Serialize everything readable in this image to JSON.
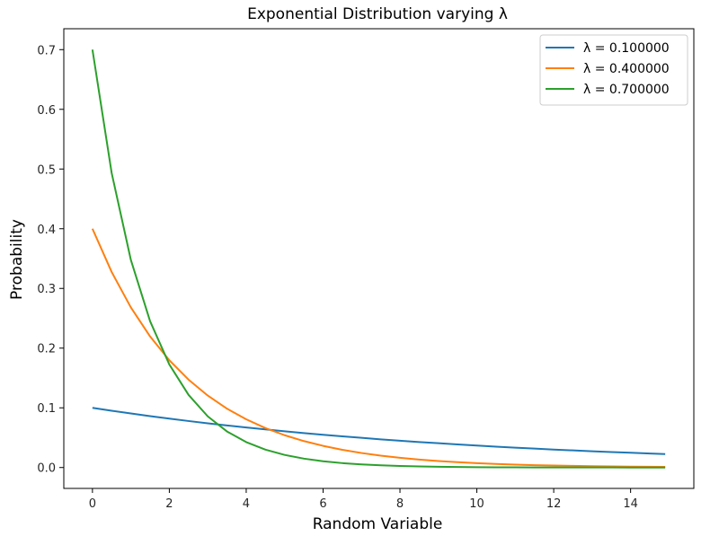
{
  "chart_data": {
    "type": "line",
    "title": "Exponential Distribution varying λ",
    "xlabel": "Random Variable",
    "ylabel": "Probability",
    "xlim": [
      -0.745,
      15.645
    ],
    "ylim": [
      -0.035,
      0.735
    ],
    "xticks": [
      0,
      2,
      4,
      6,
      8,
      10,
      12,
      14
    ],
    "yticks": [
      0.0,
      0.1,
      0.2,
      0.3,
      0.4,
      0.5,
      0.6,
      0.7
    ],
    "xtick_labels": [
      "0",
      "2",
      "4",
      "6",
      "8",
      "10",
      "12",
      "14"
    ],
    "ytick_labels": [
      "0.0",
      "0.1",
      "0.2",
      "0.3",
      "0.4",
      "0.5",
      "0.6",
      "0.7"
    ],
    "grid": false,
    "legend_position": "top-right",
    "x": [
      0,
      0.5,
      1,
      1.5,
      2,
      2.5,
      3,
      3.5,
      4,
      4.5,
      5,
      5.5,
      6,
      6.5,
      7,
      7.5,
      8,
      8.5,
      9,
      9.5,
      10,
      10.5,
      11,
      11.5,
      12,
      12.5,
      13,
      13.5,
      14,
      14.5,
      14.9
    ],
    "series": [
      {
        "name": "λ = 0.100000",
        "color": "#1f77b4",
        "values": [
          0.1,
          0.0951,
          0.0905,
          0.0861,
          0.0819,
          0.0779,
          0.0741,
          0.0705,
          0.067,
          0.0638,
          0.0607,
          0.0577,
          0.0549,
          0.0522,
          0.0497,
          0.0472,
          0.0449,
          0.0427,
          0.0407,
          0.0387,
          0.0368,
          0.035,
          0.0333,
          0.0317,
          0.0301,
          0.0287,
          0.0273,
          0.0259,
          0.0247,
          0.0235,
          0.0225
        ]
      },
      {
        "name": "λ = 0.400000",
        "color": "#ff7f0e",
        "values": [
          0.4,
          0.3275,
          0.2681,
          0.2195,
          0.1797,
          0.1472,
          0.1205,
          0.0986,
          0.0808,
          0.0661,
          0.0541,
          0.0443,
          0.0363,
          0.0297,
          0.0243,
          0.0199,
          0.0163,
          0.0134,
          0.0109,
          0.0089,
          0.0073,
          0.006,
          0.0049,
          0.004,
          0.0033,
          0.0027,
          0.0022,
          0.0018,
          0.0015,
          0.0012,
          0.001
        ]
      },
      {
        "name": "λ = 0.700000",
        "color": "#2ca02c",
        "values": [
          0.7,
          0.4933,
          0.3476,
          0.245,
          0.1726,
          0.1217,
          0.0857,
          0.0604,
          0.0426,
          0.03,
          0.0211,
          0.0149,
          0.0105,
          0.0074,
          0.0052,
          0.0037,
          0.0026,
          0.0018,
          0.0013,
          0.0009,
          0.0006,
          0.0004,
          0.0003,
          0.0002,
          0.0002,
          0.0001,
          0.0001,
          0.0001,
          0.0,
          0.0,
          0.0
        ]
      }
    ]
  }
}
